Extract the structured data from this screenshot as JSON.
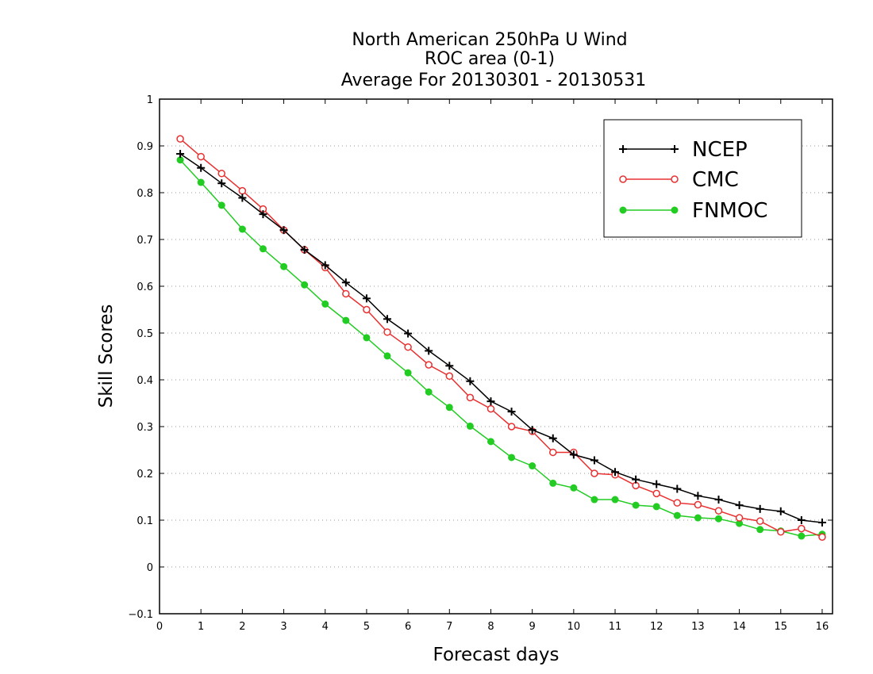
{
  "chart_data": {
    "type": "line",
    "title": [
      "North American 250hPa U Wind",
      "ROC area (0-1)",
      "Average For 20130301 - 20130531"
    ],
    "xlabel": "Forecast days",
    "ylabel": "Skill Scores",
    "xlim": [
      0,
      16.25
    ],
    "ylim": [
      -0.1,
      1
    ],
    "xticks": [
      0,
      1,
      2,
      3,
      4,
      5,
      6,
      7,
      8,
      9,
      10,
      11,
      12,
      13,
      14,
      15,
      16
    ],
    "yticks": [
      -0.1,
      0,
      0.1,
      0.2,
      0.3,
      0.4,
      0.5,
      0.6,
      0.7,
      0.8,
      0.9,
      1
    ],
    "grid": "horizontal dotted",
    "legend_position": "top-right",
    "x": [
      0.5,
      1,
      1.5,
      2,
      2.5,
      3,
      3.5,
      4,
      4.5,
      5,
      5.5,
      6,
      6.5,
      7,
      7.5,
      8,
      8.5,
      9,
      9.5,
      10,
      10.5,
      11,
      11.5,
      12,
      12.5,
      13,
      13.5,
      14,
      14.5,
      15,
      15.5,
      16
    ],
    "series": [
      {
        "name": "NCEP",
        "color": "#000000",
        "marker": "plus",
        "values": [
          0.883,
          0.853,
          0.82,
          0.789,
          0.754,
          0.72,
          0.678,
          0.645,
          0.608,
          0.574,
          0.53,
          0.499,
          0.462,
          0.43,
          0.397,
          0.354,
          0.332,
          0.293,
          0.275,
          0.24,
          0.228,
          0.203,
          0.187,
          0.177,
          0.167,
          0.152,
          0.144,
          0.132,
          0.124,
          0.119,
          0.1,
          0.095
        ]
      },
      {
        "name": "CMC",
        "color": "#e83030",
        "marker": "open-circle",
        "values": [
          0.915,
          0.877,
          0.841,
          0.804,
          0.765,
          0.72,
          0.678,
          0.64,
          0.584,
          0.55,
          0.502,
          0.47,
          0.432,
          0.408,
          0.362,
          0.338,
          0.3,
          0.29,
          0.245,
          0.245,
          0.2,
          0.197,
          0.174,
          0.157,
          0.137,
          0.133,
          0.12,
          0.105,
          0.098,
          0.075,
          0.082,
          0.064
        ]
      },
      {
        "name": "FNMOC",
        "color": "#22cc22",
        "marker": "filled-circle",
        "values": [
          0.87,
          0.822,
          0.773,
          0.722,
          0.68,
          0.642,
          0.603,
          0.562,
          0.527,
          0.49,
          0.451,
          0.415,
          0.374,
          0.341,
          0.301,
          0.268,
          0.234,
          0.216,
          0.179,
          0.169,
          0.144,
          0.144,
          0.132,
          0.129,
          0.11,
          0.105,
          0.103,
          0.093,
          0.08,
          0.077,
          0.066,
          0.07
        ]
      }
    ]
  }
}
